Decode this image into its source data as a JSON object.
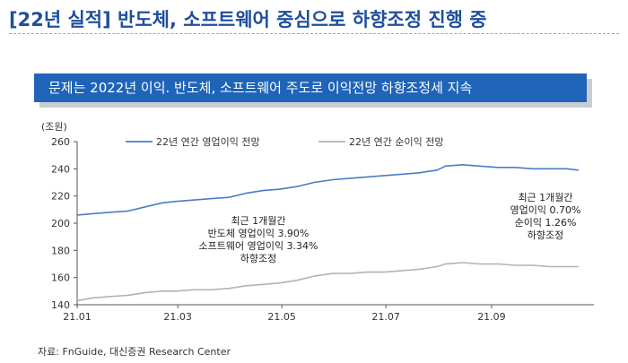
{
  "header": {
    "title": "[22년 실적] 반도체, 소프트웨어 중심으로 하향조정 진행 중",
    "banner": "문제는 2022년 이익. 반도체, 소프트웨어 주도로 이익전망 하향조정세 지속"
  },
  "source": "자료: FnGuide, 대신증권 Research Center",
  "colors": {
    "title": "#1f4e9c",
    "banner": "#1f64b8",
    "operating": "#4a7cc4",
    "net": "#b3b3b3"
  },
  "chart_data": {
    "type": "line",
    "unit_label": "(조원)",
    "ylim": [
      140,
      260
    ],
    "yticks": [
      140,
      160,
      180,
      200,
      220,
      240,
      260
    ],
    "xlim": [
      "2021-01-01",
      "2021-10-31"
    ],
    "xticks": [
      {
        "date": "2021-01-01",
        "label": "21.01"
      },
      {
        "date": "2021-03-01",
        "label": "21.03"
      },
      {
        "date": "2021-05-01",
        "label": "21.05"
      },
      {
        "date": "2021-07-01",
        "label": "21.07"
      },
      {
        "date": "2021-09-01",
        "label": "21.09"
      }
    ],
    "grid": false,
    "legend_position": "top",
    "series": [
      {
        "name": "22년 연간 영업이익 전망",
        "color": "#4a7cc4",
        "points": [
          [
            "2021-01-01",
            206
          ],
          [
            "2021-01-10",
            207
          ],
          [
            "2021-01-20",
            208
          ],
          [
            "2021-01-31",
            209
          ],
          [
            "2021-02-10",
            212
          ],
          [
            "2021-02-20",
            215
          ],
          [
            "2021-02-28",
            216
          ],
          [
            "2021-03-10",
            217
          ],
          [
            "2021-03-20",
            218
          ],
          [
            "2021-03-31",
            219
          ],
          [
            "2021-04-10",
            222
          ],
          [
            "2021-04-20",
            224
          ],
          [
            "2021-04-30",
            225
          ],
          [
            "2021-05-10",
            227
          ],
          [
            "2021-05-20",
            230
          ],
          [
            "2021-05-31",
            232
          ],
          [
            "2021-06-10",
            233
          ],
          [
            "2021-06-20",
            234
          ],
          [
            "2021-06-30",
            235
          ],
          [
            "2021-07-10",
            236
          ],
          [
            "2021-07-20",
            237
          ],
          [
            "2021-07-31",
            239
          ],
          [
            "2021-08-05",
            242
          ],
          [
            "2021-08-15",
            243
          ],
          [
            "2021-08-25",
            242
          ],
          [
            "2021-09-05",
            241
          ],
          [
            "2021-09-15",
            241
          ],
          [
            "2021-09-25",
            240
          ],
          [
            "2021-10-05",
            240
          ],
          [
            "2021-10-15",
            240
          ],
          [
            "2021-10-22",
            239
          ]
        ]
      },
      {
        "name": "22년 연간 순이익 전망",
        "color": "#b3b3b3",
        "points": [
          [
            "2021-01-01",
            143
          ],
          [
            "2021-01-10",
            145
          ],
          [
            "2021-01-20",
            146
          ],
          [
            "2021-01-31",
            147
          ],
          [
            "2021-02-10",
            149
          ],
          [
            "2021-02-20",
            150
          ],
          [
            "2021-02-28",
            150
          ],
          [
            "2021-03-10",
            151
          ],
          [
            "2021-03-20",
            151
          ],
          [
            "2021-03-31",
            152
          ],
          [
            "2021-04-10",
            154
          ],
          [
            "2021-04-20",
            155
          ],
          [
            "2021-04-30",
            156
          ],
          [
            "2021-05-10",
            158
          ],
          [
            "2021-05-20",
            161
          ],
          [
            "2021-05-31",
            163
          ],
          [
            "2021-06-10",
            163
          ],
          [
            "2021-06-20",
            164
          ],
          [
            "2021-06-30",
            164
          ],
          [
            "2021-07-10",
            165
          ],
          [
            "2021-07-20",
            166
          ],
          [
            "2021-07-31",
            168
          ],
          [
            "2021-08-05",
            170
          ],
          [
            "2021-08-15",
            171
          ],
          [
            "2021-08-25",
            170
          ],
          [
            "2021-09-05",
            170
          ],
          [
            "2021-09-15",
            169
          ],
          [
            "2021-09-25",
            169
          ],
          [
            "2021-10-05",
            168
          ],
          [
            "2021-10-15",
            168
          ],
          [
            "2021-10-22",
            168
          ]
        ]
      }
    ],
    "annotations": [
      {
        "lines": [
          "최근 1개월간",
          "반도체 영업이익 3.90%",
          "소프트웨어 영업이익 3.34%",
          "하향조정"
        ]
      },
      {
        "lines": [
          "최근 1개월간",
          "영업이익 0.70%",
          "순이익 1.26%",
          "하향조정"
        ]
      }
    ]
  }
}
